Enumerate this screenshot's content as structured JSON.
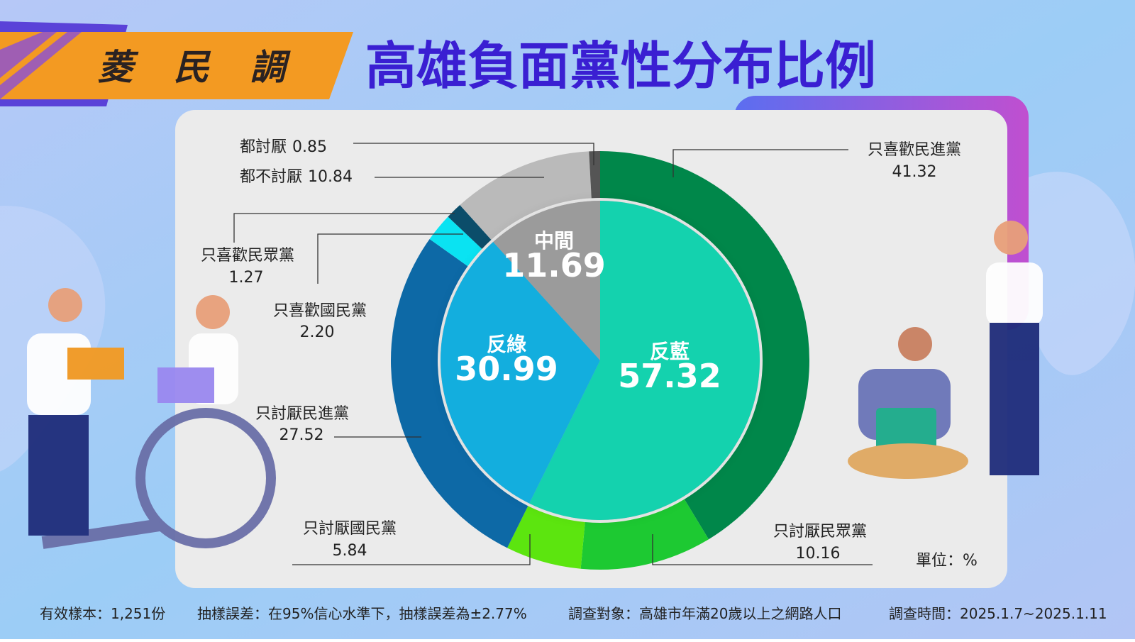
{
  "header": {
    "badge": "菱 民 調",
    "title": "高雄負面黨性分布比例"
  },
  "chart_data": {
    "type": "sunburst",
    "unit_label": "單位：%",
    "rings": [
      {
        "categories": [
          "反藍",
          "反綠",
          "中間"
        ],
        "values": [
          57.32,
          30.99,
          11.69
        ],
        "colors": [
          "#14d2ae",
          "#13aede",
          "#9b9b9b"
        ]
      },
      {
        "categories": [
          "只喜歡民進黨",
          "只討厭民眾黨",
          "只討厭國民黨",
          "只討厭民進黨",
          "只喜歡國民黨",
          "只喜歡民眾黨",
          "都不討厭",
          "都討厭"
        ],
        "values": [
          41.32,
          10.16,
          5.84,
          27.52,
          2.2,
          1.27,
          10.84,
          0.85
        ],
        "value_labels": [
          "41.32",
          "10.16",
          "5.84",
          "27.52",
          "2.20",
          "1.27",
          "10.84",
          "0.85"
        ],
        "colors": [
          "#00874a",
          "#1dc932",
          "#5ce50f",
          "#0d69a6",
          "#0ae3f2",
          "#0b4d6a",
          "#bababa",
          "#555555"
        ]
      }
    ]
  },
  "footer": [
    "有效樣本：1,251份",
    "抽樣誤差：在95%信心水準下，抽樣誤差為±2.77%",
    "調查對象：高雄市年滿20歲以上之網路人口",
    "調查時間：2025.1.7~2025.1.11"
  ]
}
